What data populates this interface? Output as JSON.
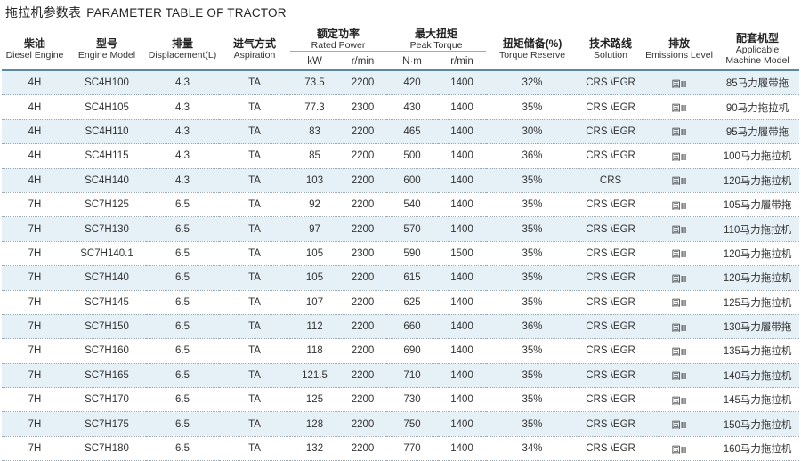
{
  "title": {
    "zh": "拖拉机参数表",
    "en": "PARAMETER TABLE OF TRACTOR"
  },
  "headers": {
    "engine": {
      "zh": "柴油",
      "en": "Diesel Engine"
    },
    "model": {
      "zh": "型号",
      "en": "Engine Model"
    },
    "displacement": {
      "zh": "排量",
      "en": "Displacement(L)"
    },
    "aspiration": {
      "zh": "进气方式",
      "en": "Aspiration"
    },
    "power": {
      "zh": "额定功率",
      "en": "Rated Power",
      "unit1": "kW",
      "unit2": "r/min"
    },
    "torque": {
      "zh": "最大扭矩",
      "en": "Peak Torque",
      "unit1": "N·m",
      "unit2": "r/min"
    },
    "reserve": {
      "zh": "扭矩储备(%)",
      "en": "Torque Reserve"
    },
    "solution": {
      "zh": "技术路线",
      "en": "Solution"
    },
    "emissions": {
      "zh": "排放",
      "en": "Emissions Level"
    },
    "machine": {
      "zh": "配套机型",
      "en1": "Applicable",
      "en2": "Machine Model"
    }
  },
  "rows": [
    [
      "4H",
      "SC4H100",
      "4.3",
      "TA",
      "73.5",
      "2200",
      "420",
      "1400",
      "32%",
      "CRS \\EGR",
      "国Ⅲ",
      "85马力履带拖"
    ],
    [
      "4H",
      "SC4H105",
      "4.3",
      "TA",
      "77.3",
      "2300",
      "430",
      "1400",
      "35%",
      "CRS \\EGR",
      "国Ⅲ",
      "90马力拖拉机"
    ],
    [
      "4H",
      "SC4H110",
      "4.3",
      "TA",
      "83",
      "2200",
      "465",
      "1400",
      "30%",
      "CRS \\EGR",
      "国Ⅲ",
      "95马力履带拖"
    ],
    [
      "4H",
      "SC4H115",
      "4.3",
      "TA",
      "85",
      "2200",
      "500",
      "1400",
      "36%",
      "CRS \\EGR",
      "国Ⅲ",
      "100马力拖拉机"
    ],
    [
      "4H",
      "SC4H140",
      "4.3",
      "TA",
      "103",
      "2200",
      "600",
      "1400",
      "35%",
      "CRS",
      "国Ⅲ",
      "120马力拖拉机"
    ],
    [
      "7H",
      "SC7H125",
      "6.5",
      "TA",
      "92",
      "2200",
      "540",
      "1400",
      "35%",
      "CRS \\EGR",
      "国Ⅲ",
      "105马力履带拖"
    ],
    [
      "7H",
      "SC7H130",
      "6.5",
      "TA",
      "97",
      "2200",
      "570",
      "1400",
      "35%",
      "CRS \\EGR",
      "国Ⅲ",
      "110马力拖拉机"
    ],
    [
      "7H",
      "SC7H140.1",
      "6.5",
      "TA",
      "105",
      "2300",
      "590",
      "1500",
      "35%",
      "CRS \\EGR",
      "国Ⅲ",
      "120马力拖拉机"
    ],
    [
      "7H",
      "SC7H140",
      "6.5",
      "TA",
      "105",
      "2200",
      "615",
      "1400",
      "35%",
      "CRS \\EGR",
      "国Ⅲ",
      "120马力拖拉机"
    ],
    [
      "7H",
      "SC7H145",
      "6.5",
      "TA",
      "107",
      "2200",
      "625",
      "1400",
      "35%",
      "CRS \\EGR",
      "国Ⅲ",
      "125马力拖拉机"
    ],
    [
      "7H",
      "SC7H150",
      "6.5",
      "TA",
      "112",
      "2200",
      "660",
      "1400",
      "36%",
      "CRS \\EGR",
      "国Ⅲ",
      "130马力履带拖"
    ],
    [
      "7H",
      "SC7H160",
      "6.5",
      "TA",
      "118",
      "2200",
      "690",
      "1400",
      "35%",
      "CRS \\EGR",
      "国Ⅲ",
      "135马力拖拉机"
    ],
    [
      "7H",
      "SC7H165",
      "6.5",
      "TA",
      "121.5",
      "2200",
      "710",
      "1400",
      "35%",
      "CRS \\EGR",
      "国Ⅲ",
      "140马力拖拉机"
    ],
    [
      "7H",
      "SC7H170",
      "6.5",
      "TA",
      "125",
      "2200",
      "730",
      "1400",
      "35%",
      "CRS \\EGR",
      "国Ⅲ",
      "145马力拖拉机"
    ],
    [
      "7H",
      "SC7H175",
      "6.5",
      "TA",
      "128",
      "2200",
      "750",
      "1400",
      "35%",
      "CRS \\EGR",
      "国Ⅲ",
      "150马力拖拉机"
    ],
    [
      "7H",
      "SC7H180",
      "6.5",
      "TA",
      "132",
      "2200",
      "770",
      "1400",
      "34%",
      "CRS \\EGR",
      "国Ⅲ",
      "160马力拖拉机"
    ]
  ]
}
